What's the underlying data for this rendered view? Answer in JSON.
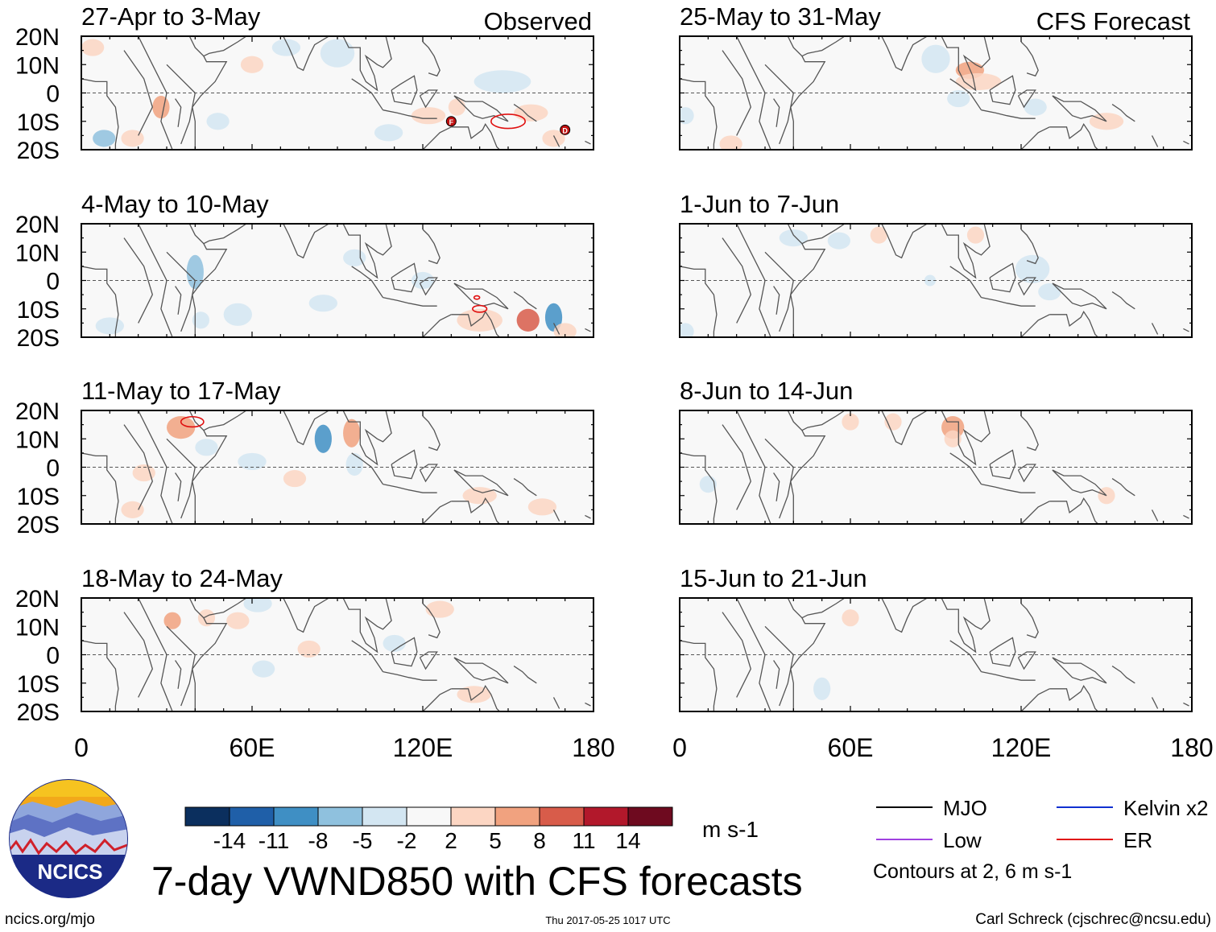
{
  "chart_data": {
    "type": "heatmap",
    "title": "7-day VWND850 with CFS forecasts",
    "variable": "VWND850",
    "units": "m s-1",
    "x_range": [
      0,
      180
    ],
    "y_range": [
      -20,
      20
    ],
    "x_ticks": [
      "0",
      "60E",
      "120E",
      "180"
    ],
    "y_ticks": [
      "20N",
      "10N",
      "0",
      "10S",
      "20S"
    ],
    "column_labels": {
      "observed": "Observed",
      "forecast": "CFS Forecast"
    },
    "panels": [
      {
        "period": "27-Apr to 3-May",
        "source": "Observed",
        "col": 0,
        "row": 0
      },
      {
        "period": "4-May to 10-May",
        "source": "Observed",
        "col": 0,
        "row": 1
      },
      {
        "period": "11-May to 17-May",
        "source": "Observed",
        "col": 0,
        "row": 2
      },
      {
        "period": "18-May to 24-May",
        "source": "Observed",
        "col": 0,
        "row": 3
      },
      {
        "period": "25-May to 31-May",
        "source": "CFS Forecast",
        "col": 1,
        "row": 0
      },
      {
        "period": "1-Jun to 7-Jun",
        "source": "CFS Forecast",
        "col": 1,
        "row": 1
      },
      {
        "period": "8-Jun to 14-Jun",
        "source": "CFS Forecast",
        "col": 1,
        "row": 2
      },
      {
        "period": "15-Jun to 21-Jun",
        "source": "CFS Forecast",
        "col": 1,
        "row": 3
      }
    ],
    "colorbar": {
      "labels": [
        "-14",
        "-11",
        "-8",
        "-5",
        "-2",
        "2",
        "5",
        "8",
        "11",
        "14"
      ],
      "colors": [
        "#0b2f5e",
        "#1f5fa8",
        "#3f8fc4",
        "#8fc1de",
        "#d3e6f2",
        "#f8f8f8",
        "#fcd6c3",
        "#f1a27f",
        "#d85c4a",
        "#b2182b",
        "#6e0a1f"
      ]
    },
    "legend": [
      {
        "label": "MJO",
        "color": "#000000"
      },
      {
        "label": "Kelvin x2",
        "color": "#1030d0"
      },
      {
        "label": "Low",
        "color": "#a040e0"
      },
      {
        "label": "ER",
        "color": "#e01010"
      }
    ],
    "contour_note": "Contours at 2, 6 m s-1"
  },
  "footer": {
    "logo_text": "NCICS",
    "url": "ncics.org/mjo",
    "timestamp": "Thu 2017-05-25 1017 UTC",
    "author": "Carl Schreck (cjschrec@ncsu.edu)"
  }
}
